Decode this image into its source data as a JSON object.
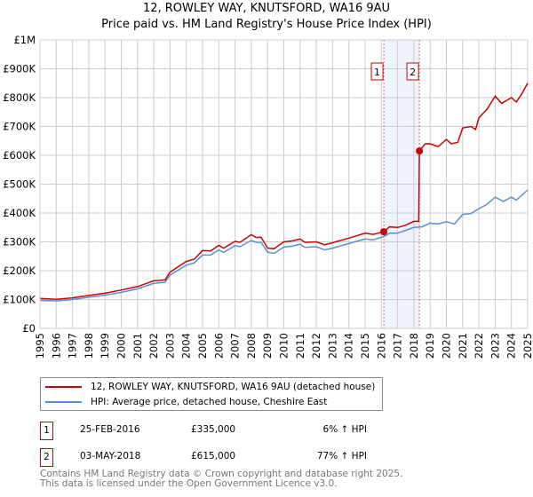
{
  "title": "12, ROWLEY WAY, KNUTSFORD, WA16 9AU",
  "subtitle": "Price paid vs. HM Land Registry's House Price Index (HPI)",
  "legend": [
    "12, ROWLEY WAY, KNUTSFORD, WA16 9AU (detached house)",
    "HPI: Average price, detached house, Cheshire East"
  ],
  "sales": [
    {
      "num": "1",
      "date": "25-FEB-2016",
      "price": "£335,000",
      "hpi": "6% ↑ HPI",
      "x": 2016.15,
      "y": 335
    },
    {
      "num": "2",
      "date": "03-MAY-2018",
      "price": "£615,000",
      "hpi": "77% ↑ HPI",
      "x": 2018.34,
      "y": 615
    }
  ],
  "footer": [
    "Contains HM Land Registry data © Crown copyright and database right 2025.",
    "This data is licensed under the Open Government Licence v3.0."
  ],
  "colors": {
    "property": "#cc0000",
    "hpi": "#5b8fd6",
    "shade": "#eef3fd"
  },
  "chart_data": {
    "type": "line",
    "xlim": [
      1995,
      2025
    ],
    "ylim": [
      0,
      1000
    ],
    "yticks": [
      0,
      100,
      200,
      300,
      400,
      500,
      600,
      700,
      800,
      900,
      1000
    ],
    "ytick_labels": [
      "£0",
      "£100K",
      "£200K",
      "£300K",
      "£400K",
      "£500K",
      "£600K",
      "£700K",
      "£800K",
      "£900K",
      "£1M"
    ],
    "xticks": [
      "1995",
      "1996",
      "1997",
      "1998",
      "1999",
      "2000",
      "2001",
      "2002",
      "2003",
      "2004",
      "2005",
      "2006",
      "2007",
      "2008",
      "2009",
      "2010",
      "2011",
      "2012",
      "2013",
      "2014",
      "2015",
      "2016",
      "2017",
      "2018",
      "2019",
      "2020",
      "2021",
      "2022",
      "2023",
      "2024",
      "2025"
    ],
    "grid": true,
    "series": [
      {
        "name": "property",
        "x": [
          1995,
          1996,
          1997,
          1998,
          1999,
          2000,
          2001,
          2002,
          2002.7,
          2003,
          2004,
          2004.5,
          2005,
          2005.5,
          2006,
          2006.3,
          2007,
          2007.3,
          2008,
          2008.3,
          2008.6,
          2009,
          2009.4,
          2010,
          2010.5,
          2011,
          2011.3,
          2012,
          2012.5,
          2013,
          2014,
          2015,
          2015.5,
          2016.15,
          2016.5,
          2017,
          2017.5,
          2018,
          2018.3,
          2018.34,
          2018.7,
          2019,
          2019.5,
          2020,
          2020.3,
          2020.7,
          2021,
          2021.5,
          2021.8,
          2022,
          2022.5,
          2023,
          2023.4,
          2024,
          2024.3,
          2024.6,
          2025
        ],
        "y": [
          104,
          101,
          106,
          114,
          122,
          133,
          145,
          165,
          168,
          195,
          232,
          240,
          270,
          268,
          288,
          278,
          302,
          298,
          325,
          315,
          316,
          278,
          276,
          300,
          303,
          310,
          298,
          300,
          290,
          297,
          313,
          330,
          326,
          335,
          352,
          350,
          358,
          371,
          371,
          615,
          640,
          640,
          630,
          655,
          640,
          645,
          695,
          700,
          690,
          730,
          760,
          805,
          780,
          800,
          785,
          810,
          850
        ]
      },
      {
        "name": "hpi",
        "x": [
          1995,
          1996,
          1997,
          1998,
          1999,
          2000,
          2001,
          2002,
          2002.7,
          2003,
          2004,
          2004.5,
          2005,
          2005.5,
          2006,
          2006.3,
          2007,
          2007.3,
          2008,
          2008.3,
          2008.6,
          2009,
          2009.4,
          2010,
          2010.5,
          2011,
          2011.3,
          2012,
          2012.5,
          2013,
          2014,
          2015,
          2015.5,
          2016.15,
          2016.5,
          2017,
          2017.5,
          2018,
          2018.5,
          2019,
          2019.5,
          2020,
          2020.5,
          2021,
          2021.5,
          2022,
          2022.5,
          2023,
          2023.5,
          2024,
          2024.3,
          2024.6,
          2025
        ],
        "y": [
          97,
          95,
          100,
          108,
          115,
          125,
          137,
          156,
          160,
          185,
          219,
          227,
          254,
          254,
          272,
          263,
          287,
          283,
          305,
          298,
          298,
          264,
          260,
          282,
          285,
          292,
          281,
          283,
          272,
          278,
          294,
          310,
          307,
          318,
          330,
          330,
          340,
          350,
          352,
          365,
          362,
          370,
          362,
          395,
          398,
          415,
          430,
          455,
          440,
          455,
          445,
          460,
          480
        ]
      }
    ]
  }
}
